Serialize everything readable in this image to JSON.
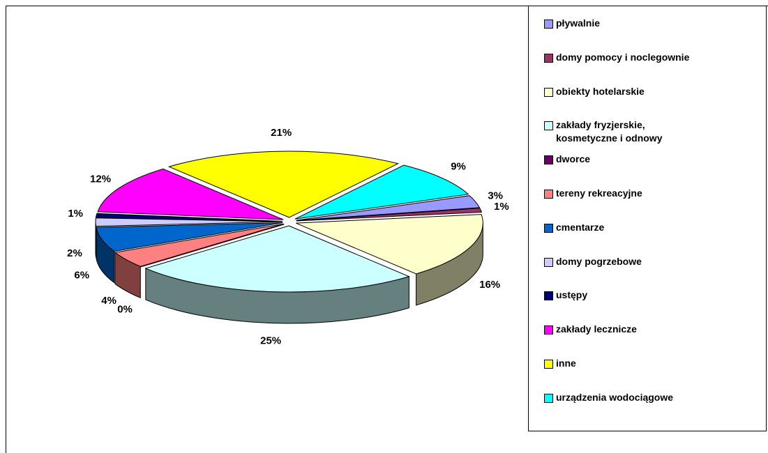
{
  "chart_data": {
    "type": "pie3d",
    "categories": [
      "pływalnie",
      "domy pomocy i noclegownie",
      "obiekty hotelarskie",
      "zakłady fryzjerskie, kosmetyczne i odnowy",
      "dworce",
      "tereny rekreacyjne",
      "cmentarze",
      "domy pogrzebowe",
      "ustępy",
      "zakłady lecznicze",
      "inne",
      "urządzenia wodociągowe"
    ],
    "values": [
      3,
      1,
      16,
      25,
      0,
      4,
      6,
      2,
      1,
      12,
      21,
      9
    ],
    "value_labels": [
      "3%",
      "1%",
      "16%",
      "25%",
      "0%",
      "4%",
      "6%",
      "2%",
      "1%",
      "12%",
      "21%",
      "9%"
    ],
    "colors": [
      "#9999ff",
      "#993366",
      "#ffffcc",
      "#ccffff",
      "#660066",
      "#ff8080",
      "#0066cc",
      "#ccccff",
      "#000080",
      "#ff00ff",
      "#ffff00",
      "#00ffff"
    ],
    "legend": "right"
  }
}
